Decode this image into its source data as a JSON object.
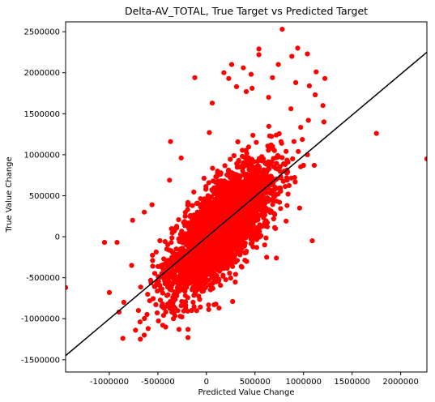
{
  "chart_data": {
    "type": "scatter",
    "title": "Delta-AV_TOTAL, True Target vs Predicted Target",
    "xlabel": "Predicted Value Change",
    "ylabel": "True Value Change",
    "xlim": [
      -1450000,
      2270000
    ],
    "ylim": [
      -1650000,
      2620000
    ],
    "xticks": [
      -1000000,
      -500000,
      0,
      500000,
      1000000,
      1500000,
      2000000
    ],
    "yticks": [
      -1500000,
      -1000000,
      -500000,
      0,
      500000,
      1000000,
      1500000,
      2000000,
      2500000
    ],
    "grid": false,
    "legend": "none",
    "marker_color": "#ff0000",
    "line_color": "#000000",
    "reference_line": {
      "x": [
        -1450000,
        2270000
      ],
      "y": [
        -1450000,
        2250000
      ]
    },
    "point_cloud": {
      "n": 3400,
      "center": [
        150000,
        100000
      ],
      "sx": 260000,
      "sy": 380000,
      "correlation": 0.72,
      "x_range": [
        -700000,
        1100000
      ],
      "y_range": [
        -1250000,
        1900000
      ]
    },
    "outliers": [
      {
        "x": -1450000,
        "y": -620000
      },
      {
        "x": -1050000,
        "y": -70000
      },
      {
        "x": -920000,
        "y": -70000
      },
      {
        "x": -1000000,
        "y": -680000
      },
      {
        "x": -900000,
        "y": -920000
      },
      {
        "x": -860000,
        "y": -1240000
      },
      {
        "x": -850000,
        "y": -800000
      },
      {
        "x": -730000,
        "y": -1140000
      },
      {
        "x": -680000,
        "y": -1250000
      },
      {
        "x": -640000,
        "y": -1200000
      },
      {
        "x": -770000,
        "y": -350000
      },
      {
        "x": -700000,
        "y": -900000
      },
      {
        "x": -600000,
        "y": -1120000
      },
      {
        "x": -760000,
        "y": 200000
      },
      {
        "x": -640000,
        "y": 300000
      },
      {
        "x": -560000,
        "y": 390000
      },
      {
        "x": -380000,
        "y": 690000
      },
      {
        "x": -260000,
        "y": 960000
      },
      {
        "x": -370000,
        "y": 1160000
      },
      {
        "x": -120000,
        "y": 1940000
      },
      {
        "x": -190000,
        "y": -1230000
      },
      {
        "x": -190000,
        "y": -1130000
      },
      {
        "x": -340000,
        "y": -1000000
      },
      {
        "x": 30000,
        "y": 1270000
      },
      {
        "x": 60000,
        "y": 1630000
      },
      {
        "x": 180000,
        "y": 2000000
      },
      {
        "x": 230000,
        "y": 1930000
      },
      {
        "x": 260000,
        "y": 2100000
      },
      {
        "x": 380000,
        "y": 2060000
      },
      {
        "x": 470000,
        "y": 1810000
      },
      {
        "x": 540000,
        "y": 2290000
      },
      {
        "x": 540000,
        "y": 2220000
      },
      {
        "x": 680000,
        "y": 1940000
      },
      {
        "x": 780000,
        "y": 2530000
      },
      {
        "x": 880000,
        "y": 2200000
      },
      {
        "x": 940000,
        "y": 2300000
      },
      {
        "x": 1040000,
        "y": 2230000
      },
      {
        "x": 1060000,
        "y": 1840000
      },
      {
        "x": 1120000,
        "y": 1730000
      },
      {
        "x": 1130000,
        "y": 2010000
      },
      {
        "x": 1200000,
        "y": 1600000
      },
      {
        "x": 1220000,
        "y": 1930000
      },
      {
        "x": 1210000,
        "y": 1400000
      },
      {
        "x": 1040000,
        "y": 1000000
      },
      {
        "x": 1050000,
        "y": 1420000
      },
      {
        "x": 1110000,
        "y": 870000
      },
      {
        "x": 1000000,
        "y": 870000
      },
      {
        "x": 960000,
        "y": 350000
      },
      {
        "x": 1090000,
        "y": -50000
      },
      {
        "x": 1750000,
        "y": 1260000
      },
      {
        "x": 2270000,
        "y": 950000
      },
      {
        "x": 870000,
        "y": 1560000
      },
      {
        "x": 740000,
        "y": 2100000
      },
      {
        "x": 640000,
        "y": 1700000
      },
      {
        "x": 80000,
        "y": -830000
      },
      {
        "x": 130000,
        "y": -870000
      },
      {
        "x": 270000,
        "y": -790000
      },
      {
        "x": 620000,
        "y": -250000
      },
      {
        "x": 600000,
        "y": -100000
      },
      {
        "x": 720000,
        "y": -260000
      },
      {
        "x": 820000,
        "y": 190000
      },
      {
        "x": 830000,
        "y": 380000
      },
      {
        "x": -270000,
        "y": -970000
      },
      {
        "x": -450000,
        "y": -1080000
      },
      {
        "x": 310000,
        "y": 1830000
      },
      {
        "x": 410000,
        "y": 1770000
      },
      {
        "x": 920000,
        "y": 1880000
      },
      {
        "x": 460000,
        "y": 1980000
      }
    ]
  }
}
